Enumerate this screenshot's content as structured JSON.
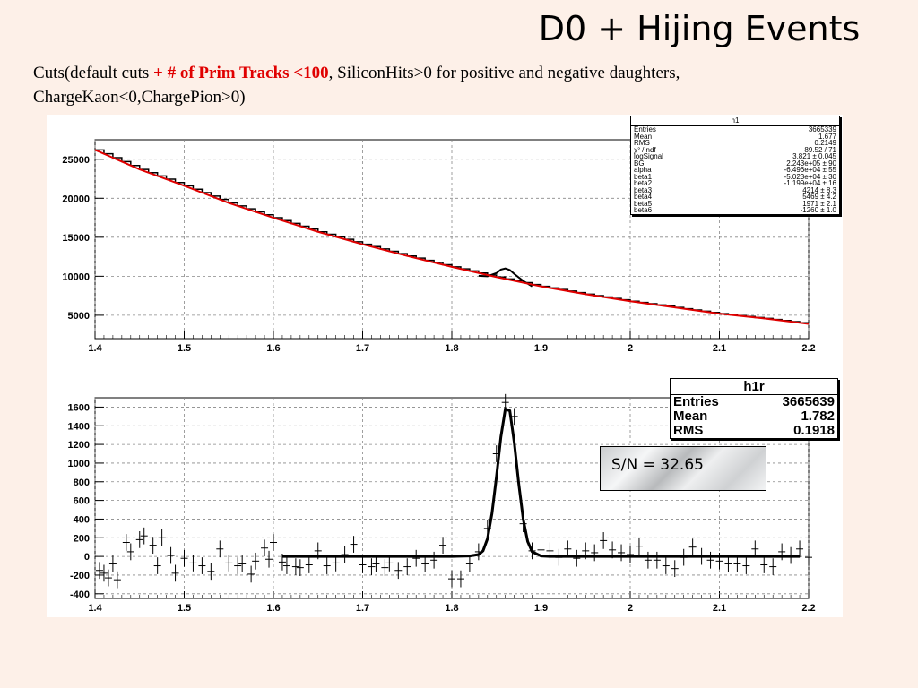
{
  "slide": {
    "title": "D0 + Hijing Events",
    "cuts_prefix": "Cuts(default cuts ",
    "cuts_highlight": "+ # of Prim Tracks <100",
    "cuts_suffix": ", SiliconHits>0 for positive and negative daughters,",
    "cuts_line2": "ChargeKaon<0,ChargePion>0)"
  },
  "colors": {
    "fit_line": "#e00000",
    "data": "#000000",
    "grid": "#888888",
    "background": "#fdf0e8"
  },
  "stats_h1": {
    "name": "h1",
    "rows": [
      {
        "label": "Entries",
        "value": "3665339"
      },
      {
        "label": "Mean",
        "value": "1.677"
      },
      {
        "label": "RMS",
        "value": "0.2149"
      },
      {
        "label": "χ² / ndf",
        "value": "89.52 / 71"
      },
      {
        "label": "logSignal",
        "value": "3.821 ± 0.045"
      },
      {
        "label": "BG",
        "value": "2.243e+05 ± 90"
      },
      {
        "label": "alpha",
        "value": "-6.496e+04 ± 55"
      },
      {
        "label": "beta1",
        "value": "-5.023e+04 ± 30"
      },
      {
        "label": "beta2",
        "value": "-1.199e+04 ± 16"
      },
      {
        "label": "beta3",
        "value": "4214 ± 8.3"
      },
      {
        "label": "beta4",
        "value": "5469 ± 4.2"
      },
      {
        "label": "beta5",
        "value": "1971 ± 2.1"
      },
      {
        "label": "beta6",
        "value": "-1260 ± 1.0"
      }
    ]
  },
  "stats_h1r": {
    "name": "h1r",
    "rows": [
      {
        "label": "Entries",
        "value": "3665639"
      },
      {
        "label": "Mean",
        "value": "1.782"
      },
      {
        "label": "RMS",
        "value": "0.1918"
      }
    ]
  },
  "sn_label": "S/N = 32.65",
  "chart_data": [
    {
      "type": "line",
      "name": "h1",
      "xlim": [
        1.4,
        2.2
      ],
      "ylim": [
        2000,
        27500
      ],
      "xticks": [
        1.4,
        1.5,
        1.6,
        1.7,
        1.8,
        1.9,
        2,
        2.1,
        2.2
      ],
      "xtick_labels": [
        "1.4",
        "1.5",
        "1.6",
        "1.7",
        "1.8",
        "1.9",
        "2",
        "2.1",
        "2.2"
      ],
      "yticks": [
        5000,
        10000,
        15000,
        20000,
        25000
      ],
      "ytick_labels": [
        "5000",
        "10000",
        "15000",
        "20000",
        "25000"
      ],
      "grid": true,
      "background_fit": {
        "x": [
          1.4,
          1.45,
          1.5,
          1.55,
          1.6,
          1.65,
          1.7,
          1.75,
          1.8,
          1.85,
          1.9,
          1.95,
          2.0,
          2.05,
          2.1,
          2.15,
          2.2
        ],
        "y": [
          26200,
          23700,
          21600,
          19400,
          17500,
          15700,
          14100,
          12600,
          11200,
          9900,
          8700,
          7700,
          6800,
          6000,
          5200,
          4600,
          3900
        ]
      },
      "peak_x": [
        1.83,
        1.84,
        1.85,
        1.855,
        1.86,
        1.865,
        1.87,
        1.88,
        1.89
      ],
      "peak_y": [
        10050,
        10000,
        10400,
        10850,
        11000,
        10800,
        10300,
        9400,
        8700
      ]
    },
    {
      "type": "scatter",
      "name": "h1r",
      "xlim": [
        1.4,
        2.2
      ],
      "ylim": [
        -450,
        1700
      ],
      "xticks": [
        1.4,
        1.5,
        1.6,
        1.7,
        1.8,
        1.9,
        2,
        2.1,
        2.2
      ],
      "xtick_labels": [
        "1.4",
        "1.5",
        "1.6",
        "1.7",
        "1.8",
        "1.9",
        "2",
        "2.1",
        "2.2"
      ],
      "yticks": [
        -400,
        -200,
        0,
        200,
        400,
        600,
        800,
        1000,
        1200,
        1400,
        1600
      ],
      "ytick_labels": [
        "-400",
        "-200",
        "0",
        "200",
        "400",
        "600",
        "800",
        "1000",
        "1200",
        "1400",
        "1600"
      ],
      "grid": true,
      "points_x": [
        1.405,
        1.41,
        1.415,
        1.42,
        1.425,
        1.435,
        1.44,
        1.45,
        1.455,
        1.465,
        1.47,
        1.475,
        1.485,
        1.49,
        1.5,
        1.51,
        1.52,
        1.53,
        1.54,
        1.55,
        1.56,
        1.565,
        1.575,
        1.58,
        1.59,
        1.595,
        1.6,
        1.61,
        1.615,
        1.625,
        1.63,
        1.64,
        1.65,
        1.66,
        1.67,
        1.68,
        1.69,
        1.7,
        1.71,
        1.715,
        1.725,
        1.73,
        1.74,
        1.75,
        1.76,
        1.77,
        1.78,
        1.79,
        1.8,
        1.81,
        1.82,
        1.83,
        1.84,
        1.85,
        1.86,
        1.87,
        1.88,
        1.89,
        1.9,
        1.91,
        1.92,
        1.93,
        1.94,
        1.95,
        1.96,
        1.97,
        1.98,
        1.99,
        2.0,
        2.01,
        2.02,
        2.03,
        2.04,
        2.05,
        2.06,
        2.07,
        2.08,
        2.09,
        2.1,
        2.11,
        2.12,
        2.13,
        2.14,
        2.15,
        2.16,
        2.17,
        2.18,
        2.19,
        2.2
      ],
      "points_y": [
        -150,
        -180,
        -230,
        -80,
        -250,
        150,
        50,
        180,
        220,
        120,
        -100,
        200,
        10,
        -180,
        -20,
        -70,
        -100,
        -160,
        80,
        -70,
        -100,
        -80,
        -190,
        -50,
        90,
        -30,
        150,
        -60,
        -100,
        -110,
        -120,
        -90,
        60,
        -100,
        -70,
        20,
        130,
        -90,
        -110,
        -80,
        -120,
        -70,
        -150,
        -110,
        -20,
        -80,
        -40,
        120,
        -240,
        -240,
        -80,
        50,
        300,
        1100,
        1650,
        1500,
        350,
        60,
        70,
        60,
        -10,
        80,
        -20,
        60,
        40,
        170,
        70,
        40,
        20,
        110,
        -40,
        -40,
        -100,
        -130,
        -10,
        100,
        0,
        -40,
        -50,
        -80,
        -80,
        -100,
        80,
        -90,
        -110,
        50,
        10,
        80,
        -10
      ],
      "points_err": [
        90,
        90,
        90,
        90,
        90,
        90,
        90,
        90,
        90,
        90,
        90,
        90,
        90,
        90,
        90,
        90,
        90,
        90,
        90,
        90,
        90,
        90,
        90,
        90,
        90,
        90,
        90,
        90,
        90,
        90,
        90,
        90,
        90,
        90,
        90,
        90,
        90,
        90,
        90,
        90,
        90,
        90,
        90,
        90,
        90,
        90,
        90,
        90,
        90,
        90,
        90,
        90,
        90,
        90,
        90,
        90,
        90,
        90,
        90,
        90,
        90,
        90,
        90,
        90,
        90,
        90,
        90,
        90,
        90,
        90,
        90,
        90,
        90,
        90,
        90,
        90,
        90,
        90,
        90,
        90,
        90,
        90,
        90,
        90,
        90,
        90,
        90,
        90,
        90
      ],
      "fit_x": [
        1.61,
        1.8,
        1.82,
        1.83,
        1.835,
        1.84,
        1.845,
        1.85,
        1.855,
        1.86,
        1.865,
        1.87,
        1.875,
        1.88,
        1.885,
        1.89,
        1.9,
        1.91,
        2.19
      ],
      "fit_y": [
        0,
        0,
        5,
        20,
        60,
        190,
        460,
        850,
        1280,
        1580,
        1560,
        1220,
        780,
        400,
        160,
        50,
        5,
        0,
        0
      ]
    }
  ]
}
